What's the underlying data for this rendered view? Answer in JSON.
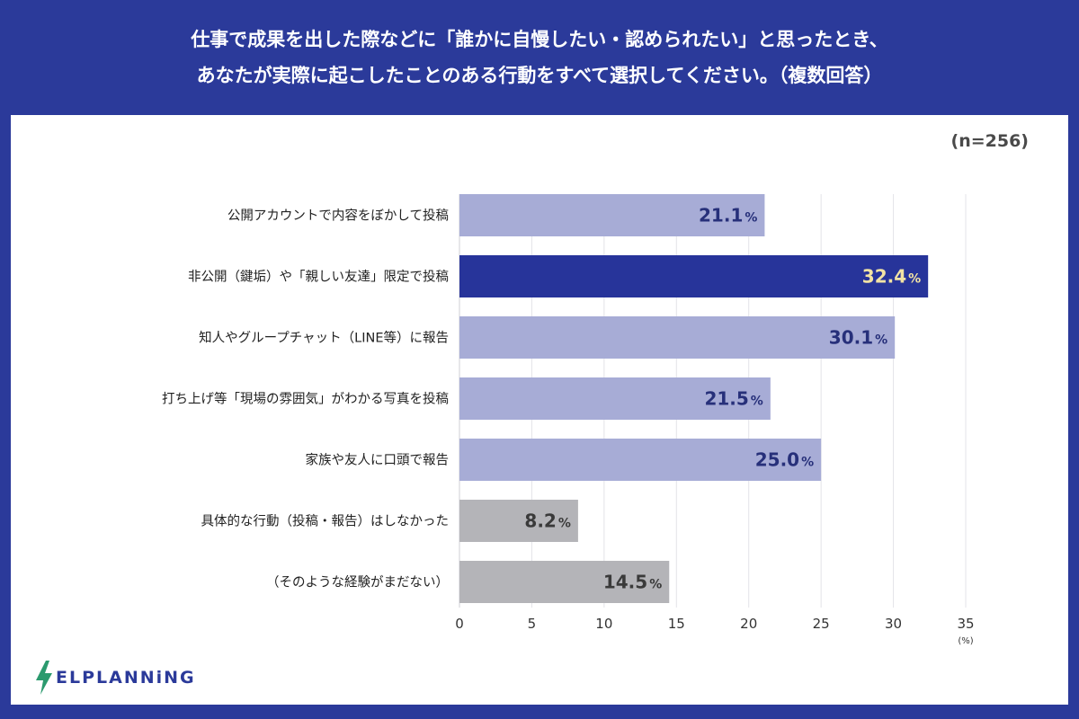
{
  "title": {
    "line1": "仕事で成果を出した際などに「誰かに自慢したい・認められたい」と思ったとき、",
    "line2": "あなたが実際に起こしたことのある行動をすべて選択してください。（複数回答）"
  },
  "sample_size": "(n=256)",
  "logo": {
    "text": "ELPLANNiNG",
    "icon": "lightning-bolt-icon"
  },
  "colors": {
    "header_bg": "#2b3a9a",
    "bar_default": "#a7acd6",
    "bar_highlight": "#27349a",
    "bar_none": "#b4b4b8",
    "value_text": "#27307a",
    "value_text_highlight": "#f2e3a4",
    "value_text_none": "#3a3a3a"
  },
  "chart_data": {
    "type": "bar",
    "orientation": "horizontal",
    "categories": [
      "公開アカウントで内容をぼかして投稿",
      "非公開（鍵垢）や「親しい友達」限定で投稿",
      "知人やグループチャット（LINE等）に報告",
      "打ち上げ等「現場の雰囲気」がわかる写真を投稿",
      "家族や友人に口頭で報告",
      "具体的な行動（投稿・報告）はしなかった",
      "（そのような経験がまだない）"
    ],
    "values": [
      21.1,
      32.4,
      30.1,
      21.5,
      25.0,
      8.2,
      14.5
    ],
    "value_labels": [
      "21.1",
      "32.4",
      "30.1",
      "21.5",
      "25.0",
      "8.2",
      "14.5"
    ],
    "value_suffix": "%",
    "bar_styles": [
      "default",
      "highlight",
      "default",
      "default",
      "default",
      "none",
      "none"
    ],
    "xlim": [
      0,
      35
    ],
    "ticks": [
      0,
      5,
      10,
      15,
      20,
      25,
      30,
      35
    ],
    "tick_labels": [
      "0",
      "5",
      "10",
      "15",
      "20",
      "25",
      "30",
      "35"
    ],
    "unit_label": "(%)",
    "grid": true
  }
}
